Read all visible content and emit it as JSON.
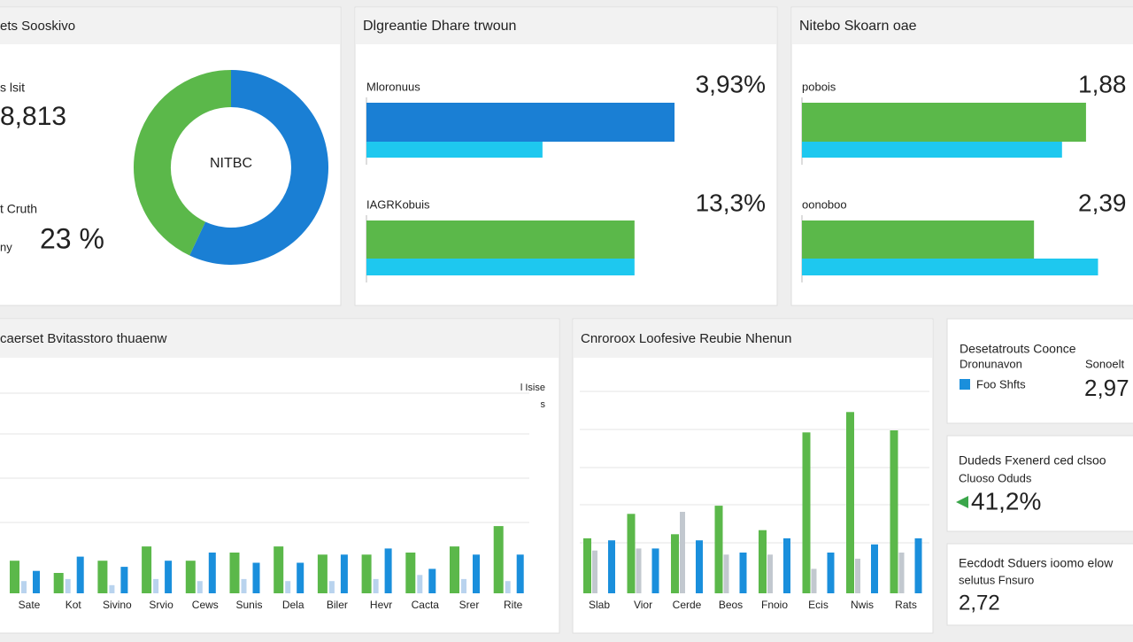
{
  "donut_panel": {
    "title": "ets Sooskivo",
    "label_1": "s lsit",
    "value_1": "8,813",
    "label_2": "t Cruth",
    "label_3": "ny",
    "value_2": "23 %",
    "center_label": "NITBC",
    "segments": [
      {
        "color": "#1a7fd4",
        "value": 57
      },
      {
        "color": "#5bb84a",
        "value": 43
      }
    ]
  },
  "bar_panels": [
    {
      "title": "Dlgreantie Dhare trwoun",
      "xlim": [
        0,
        100
      ],
      "rows": [
        {
          "label": "Mloronuus",
          "value_label": "3,93%",
          "bars": [
            {
              "color": "#1a7fd4",
              "value": 77
            },
            {
              "color": "#1ec8ef",
              "value": 44
            }
          ]
        },
        {
          "label": "IAGRKobuis",
          "value_label": "13,3%",
          "bars": [
            {
              "color": "#5bb84a",
              "value": 67
            },
            {
              "color": "#1ec8ef",
              "value": 67
            }
          ]
        }
      ]
    },
    {
      "title": "Nitebo Skoarn oae",
      "xlim": [
        0,
        100
      ],
      "rows": [
        {
          "label": "pobois",
          "value_label": "1,88",
          "bars": [
            {
              "color": "#5bb84a",
              "value": 71
            },
            {
              "color": "#1ec8ef",
              "value": 65
            }
          ]
        },
        {
          "label": "oonoboo",
          "value_label": "2,39",
          "bars": [
            {
              "color": "#5bb84a",
              "value": 58
            },
            {
              "color": "#1ec8ef",
              "value": 74
            }
          ]
        }
      ]
    }
  ],
  "column_panels": [
    {
      "title": "caerset Bvitasstoro thuaenw",
      "legend": [
        "l Isise",
        "s"
      ],
      "ylim": [
        0,
        100
      ],
      "categories": [
        "Sate",
        "Kot",
        "Sivino",
        "Srvio",
        "Cews",
        "Sunis",
        "Dela",
        "Biler",
        "Hevr",
        "Cacta",
        "Srer",
        "Rite"
      ],
      "series": [
        {
          "color": "#5bb84a",
          "values": [
            16,
            10,
            16,
            23,
            16,
            20,
            23,
            19,
            19,
            20,
            23,
            33
          ]
        },
        {
          "color": "#b9d3ee",
          "values": [
            6,
            7,
            4,
            7,
            6,
            7,
            6,
            6,
            7,
            9,
            7,
            6
          ]
        },
        {
          "color": "#1a8fdc",
          "values": [
            11,
            18,
            13,
            16,
            20,
            15,
            15,
            19,
            22,
            12,
            19,
            19
          ]
        }
      ]
    },
    {
      "title": "Cnroroox Loofesive Reubie Nhenun",
      "legend": [],
      "ylim": [
        0,
        100
      ],
      "categories": [
        "Slab",
        "Vior",
        "Cerde",
        "Beos",
        "Fnoio",
        "Ecis",
        "Nwis",
        "Rats"
      ],
      "series": [
        {
          "color": "#5bb84a",
          "values": [
            27,
            39,
            29,
            43,
            31,
            79,
            89,
            80
          ]
        },
        {
          "color": "#c2c8cf",
          "values": [
            21,
            22,
            40,
            19,
            19,
            12,
            17,
            20
          ]
        },
        {
          "color": "#1a8fdc",
          "values": [
            26,
            22,
            26,
            20,
            27,
            20,
            24,
            27
          ]
        }
      ]
    }
  ],
  "stat_cards": [
    {
      "title": "Desetatrouts Coonce",
      "subtitle": "Dronunavon",
      "legend": {
        "label": "Foo Shfts",
        "color": "#1a8fdc"
      },
      "label": "Sonoelt",
      "value": "2,97"
    },
    {
      "title": "Dudeds Fxenerd ced clsoo",
      "subtitle": "Cluoso Oduds",
      "value": "41,2%"
    },
    {
      "title": "Eecdodt Sduers ioomo elow",
      "subtitle": "selutus Fnsuro",
      "value": "2,72"
    }
  ]
}
